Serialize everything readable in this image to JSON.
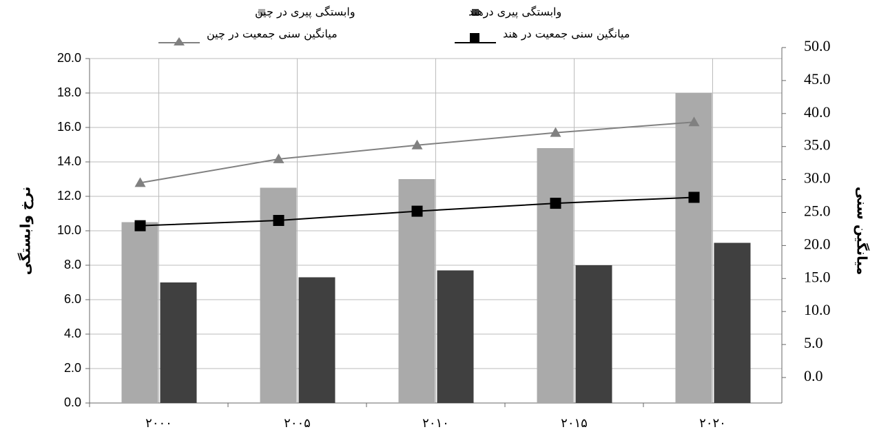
{
  "chart_data": {
    "type": "bar",
    "ylabel": "نرخ وابستگی",
    "y2label": "میانگین سنی",
    "categories": [
      "۲۰۰۰",
      "۲۰۰۵",
      "۲۰۱۰",
      "۲۰۱۵",
      "۲۰۲۰"
    ],
    "series": [
      {
        "name": "وابستگی پیری در چین",
        "type": "bar",
        "color": "#aaaaaa",
        "values": [
          10.5,
          12.5,
          13.0,
          14.8,
          18.0
        ]
      },
      {
        "name": "وابستگی پیری درهند",
        "type": "bar",
        "color": "#404040",
        "values": [
          7.0,
          7.3,
          7.7,
          8.0,
          9.3
        ]
      },
      {
        "name": "میانگین سنی جمعیت در چین",
        "type": "line",
        "marker": "triangle",
        "axis": "y2",
        "color": "#808080",
        "values": [
          29.5,
          33.1,
          35.2,
          37.1,
          38.7
        ]
      },
      {
        "name": "میانگین سنی جمعیت در هند",
        "type": "line",
        "marker": "square",
        "axis": "y2",
        "color": "#000000",
        "values": [
          23.0,
          23.8,
          25.2,
          26.4,
          27.3
        ]
      }
    ],
    "ylim": [
      0,
      20
    ],
    "yticks": [
      {
        "value": 0,
        "label": "0.0"
      },
      {
        "value": 2,
        "label": "2.0"
      },
      {
        "value": 4,
        "label": "4.0"
      },
      {
        "value": 6,
        "label": "6.0"
      },
      {
        "value": 8,
        "label": "8.0"
      },
      {
        "value": 10,
        "label": "10.0"
      },
      {
        "value": 12,
        "label": "12.0"
      },
      {
        "value": 14,
        "label": "14.0"
      },
      {
        "value": 16,
        "label": "16.0"
      },
      {
        "value": 18,
        "label": "18.0"
      },
      {
        "value": 20,
        "label": "20.0"
      }
    ],
    "y2lim": [
      0,
      50
    ],
    "y2ticks": [
      {
        "value": 0,
        "label": "0.0"
      },
      {
        "value": 5,
        "label": "5.0"
      },
      {
        "value": 10,
        "label": "10.0"
      },
      {
        "value": 15,
        "label": "15.0"
      },
      {
        "value": 20,
        "label": "20.0"
      },
      {
        "value": 25,
        "label": "25.0"
      },
      {
        "value": 30,
        "label": "30.0"
      },
      {
        "value": 35,
        "label": "35.0"
      },
      {
        "value": 40,
        "label": "40.0"
      },
      {
        "value": 45,
        "label": "45.0"
      },
      {
        "value": 50,
        "label": "50.0"
      }
    ],
    "grid": true,
    "legend": "top"
  }
}
